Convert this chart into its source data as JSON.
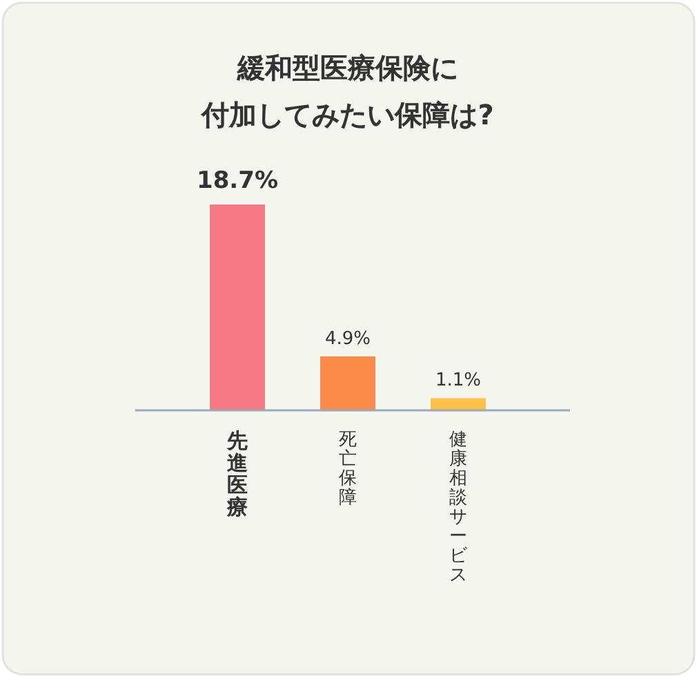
{
  "chart_data": {
    "type": "bar",
    "title": "緩和型医療保険に",
    "subtitle": "付加してみたい保障は?",
    "categories": [
      "先進医療",
      "死亡保障",
      "健康相談サービス"
    ],
    "values": [
      18.7,
      4.9,
      1.1
    ],
    "colors": [
      "#f67a86",
      "#fa8a48",
      "#fbc04a"
    ],
    "value_labels": [
      "18.7%",
      "4.9%",
      "1.1%"
    ]
  }
}
